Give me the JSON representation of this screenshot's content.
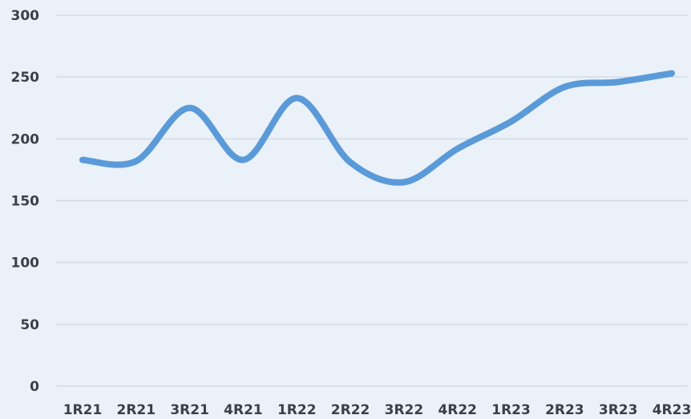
{
  "chart_data": {
    "type": "line",
    "title": "",
    "xlabel": "",
    "ylabel": "",
    "categories": [
      "1R21",
      "2R21",
      "3R21",
      "4R21",
      "1R22",
      "2R22",
      "3R22",
      "4R22",
      "1R23",
      "2R23",
      "3R23",
      "4R23"
    ],
    "ylim": [
      0,
      300
    ],
    "yticks": [
      0,
      50,
      100,
      150,
      200,
      250,
      300
    ],
    "grid": true,
    "legend": "none",
    "series": [
      {
        "color": "#5a9ad8",
        "values": [
          183,
          182,
          225,
          183,
          233,
          181,
          165,
          192,
          214,
          242,
          246,
          253
        ]
      }
    ]
  }
}
